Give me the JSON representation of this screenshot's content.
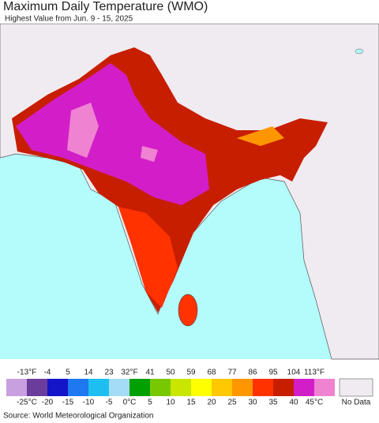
{
  "header": {
    "title": "Maximum Daily Temperature (WMO)",
    "subtitle": "Highest Value from Jun. 9 - 15, 2025"
  },
  "legend": {
    "fahrenheit": [
      "-13°F",
      "-4",
      "5",
      "14",
      "23",
      "32°F",
      "41",
      "50",
      "59",
      "68",
      "77",
      "86",
      "95",
      "104",
      "113°F"
    ],
    "celsius": [
      "-25°C",
      "-20",
      "-15",
      "-10",
      "-5",
      "0°C",
      "5",
      "10",
      "15",
      "20",
      "25",
      "30",
      "35",
      "40",
      "45°C"
    ],
    "colors": [
      "#c8a0e0",
      "#6a3d9a",
      "#1414c8",
      "#1e78f0",
      "#1ebef0",
      "#a5dcf5",
      "#00a000",
      "#78c800",
      "#c8e600",
      "#ffff00",
      "#ffc800",
      "#ff9600",
      "#ff3200",
      "#c81e00",
      "#d21ec8",
      "#f082d2"
    ],
    "no_data": "No Data"
  },
  "footer": {
    "source": "Source: World Meteorological Organization"
  }
}
